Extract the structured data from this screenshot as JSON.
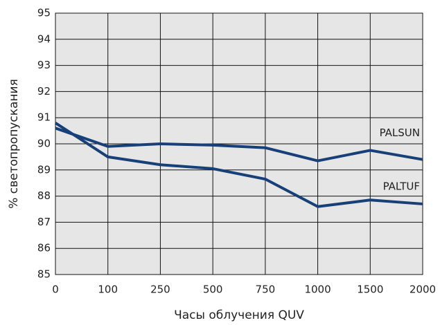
{
  "chart_data": {
    "type": "line",
    "xlabel": "Часы облучения QUV",
    "ylabel": "% светопропускания",
    "categories": [
      "0",
      "100",
      "250",
      "500",
      "750",
      "1000",
      "1500",
      "2000"
    ],
    "series": [
      {
        "name": "PALSUN",
        "color": "#173f78",
        "values": [
          90.6,
          89.9,
          90.0,
          89.95,
          89.85,
          89.35,
          89.75,
          89.4
        ]
      },
      {
        "name": "PALTUF",
        "color": "#173f78",
        "values": [
          90.8,
          89.5,
          89.2,
          89.05,
          88.65,
          87.6,
          87.85,
          87.7
        ]
      }
    ],
    "ylim": [
      85,
      95
    ],
    "yticks": [
      85,
      86,
      87,
      88,
      89,
      90,
      91,
      92,
      93,
      94,
      95
    ],
    "grid": true
  }
}
